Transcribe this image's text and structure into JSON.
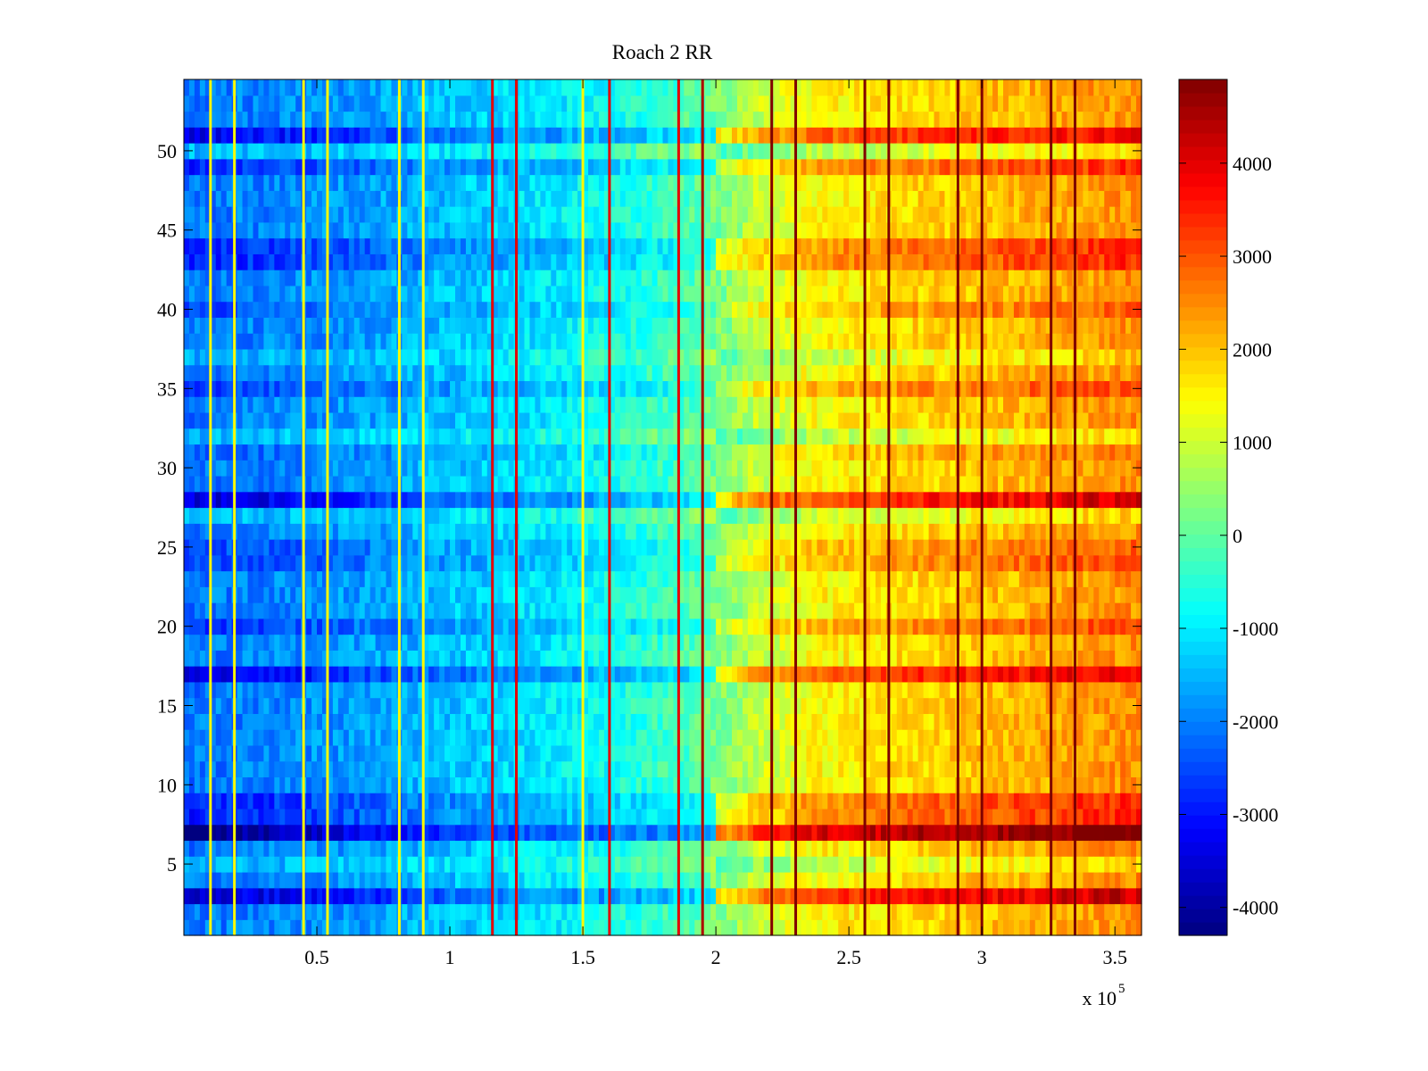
{
  "chart_data": {
    "type": "heatmap",
    "title": "Roach 2 RR",
    "xlabel": "",
    "ylabel": "",
    "x_multiplier_label": "x 10",
    "x_multiplier_exponent": "5",
    "xlim": [
      0,
      360000
    ],
    "ylim": [
      0.5,
      54.5
    ],
    "x_ticks": [
      {
        "value": 50000,
        "label": "0.5"
      },
      {
        "value": 100000,
        "label": "1"
      },
      {
        "value": 150000,
        "label": "1.5"
      },
      {
        "value": 200000,
        "label": "2"
      },
      {
        "value": 250000,
        "label": "2.5"
      },
      {
        "value": 300000,
        "label": "3"
      },
      {
        "value": 350000,
        "label": "3.5"
      }
    ],
    "y_ticks": [
      {
        "value": 5,
        "label": "5"
      },
      {
        "value": 10,
        "label": "10"
      },
      {
        "value": 15,
        "label": "15"
      },
      {
        "value": 20,
        "label": "20"
      },
      {
        "value": 25,
        "label": "25"
      },
      {
        "value": 30,
        "label": "30"
      },
      {
        "value": 35,
        "label": "35"
      },
      {
        "value": 40,
        "label": "40"
      },
      {
        "value": 45,
        "label": "45"
      },
      {
        "value": 50,
        "label": "50"
      }
    ],
    "rows": 54,
    "colorbar": {
      "colormap": "jet",
      "range": [
        -4300,
        4900
      ],
      "ticks": [
        {
          "value": 4000,
          "label": "4000"
        },
        {
          "value": 3000,
          "label": "3000"
        },
        {
          "value": 2000,
          "label": "2000"
        },
        {
          "value": 1000,
          "label": "1000"
        },
        {
          "value": 0,
          "label": "0"
        },
        {
          "value": -1000,
          "label": "-1000"
        },
        {
          "value": -2000,
          "label": "-2000"
        },
        {
          "value": -3000,
          "label": "-3000"
        },
        {
          "value": -4000,
          "label": "-4000"
        }
      ]
    },
    "column_trend": {
      "x": [
        0,
        20000,
        50000,
        80000,
        110000,
        140000,
        170000,
        190000,
        205000,
        215000,
        240000,
        270000,
        300000,
        330000,
        360000
      ],
      "value": [
        -2100,
        -2000,
        -1850,
        -1600,
        -1300,
        -1000,
        -550,
        -150,
        400,
        900,
        1500,
        1750,
        2000,
        2250,
        2500
      ]
    },
    "row_offsets": [
      {
        "row": 3,
        "value": 1800
      },
      {
        "row": 7,
        "value": 2600
      },
      {
        "row": 8,
        "value": 1000
      },
      {
        "row": 9,
        "value": 1000
      },
      {
        "row": 17,
        "value": 1500
      },
      {
        "row": 20,
        "value": 700
      },
      {
        "row": 24,
        "value": 600
      },
      {
        "row": 25,
        "value": 500
      },
      {
        "row": 28,
        "value": 1700
      },
      {
        "row": 31,
        "value": 300
      },
      {
        "row": 35,
        "value": 700
      },
      {
        "row": 40,
        "value": 500
      },
      {
        "row": 43,
        "value": 900
      },
      {
        "row": 44,
        "value": 900
      },
      {
        "row": 49,
        "value": 900
      },
      {
        "row": 51,
        "value": 1400
      },
      {
        "row": 32,
        "value": -700
      },
      {
        "row": 5,
        "value": -600
      },
      {
        "row": 27,
        "value": -600
      },
      {
        "row": 50,
        "value": -700
      },
      {
        "row": 37,
        "value": -500
      }
    ],
    "vertical_lines": [
      {
        "x": 10000,
        "value": 1500
      },
      {
        "x": 19000,
        "value": 1500
      },
      {
        "x": 45000,
        "value": 1500
      },
      {
        "x": 54000,
        "value": 1500
      },
      {
        "x": 81000,
        "value": 1500
      },
      {
        "x": 90000,
        "value": 1500
      },
      {
        "x": 116000,
        "value": 4000
      },
      {
        "x": 125000,
        "value": 4000
      },
      {
        "x": 150000,
        "value": 1500
      },
      {
        "x": 160000,
        "value": 4000
      },
      {
        "x": 186000,
        "value": 4000
      },
      {
        "x": 195000,
        "value": 4500
      },
      {
        "x": 221000,
        "value": 4900
      },
      {
        "x": 230000,
        "value": 4900
      },
      {
        "x": 256000,
        "value": 4900
      },
      {
        "x": 265000,
        "value": 4900
      },
      {
        "x": 291000,
        "value": 4900
      },
      {
        "x": 300000,
        "value": 4900
      },
      {
        "x": 326000,
        "value": 4900
      },
      {
        "x": 335000,
        "value": 4900
      }
    ]
  }
}
